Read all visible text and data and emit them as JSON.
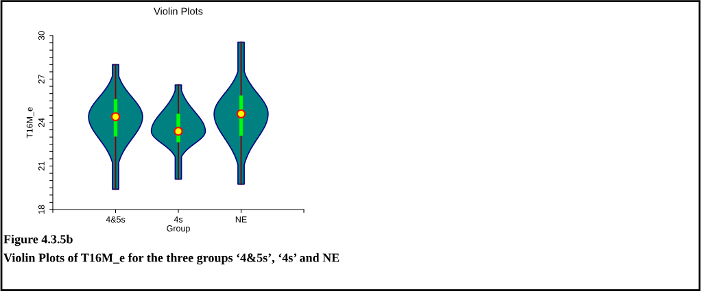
{
  "chart_data": {
    "type": "box",
    "title": "Violin Plots",
    "xlabel": "Group",
    "ylabel": "T16M_e",
    "categories": [
      "4&5s",
      "4s",
      "NE"
    ],
    "series": [
      {
        "color": "#00ff00",
        "boxes": [
          {
            "low": 19.4,
            "q1": 23.05,
            "median": 24.4,
            "q3": 25.6,
            "high": 28.0
          },
          {
            "low": 20.1,
            "q1": 22.65,
            "median": 23.4,
            "q3": 24.6,
            "high": 26.6
          },
          {
            "low": 19.75,
            "q1": 23.1,
            "median": 24.6,
            "q3": 25.85,
            "high": 29.55
          }
        ]
      }
    ],
    "ylim": [
      18,
      30
    ],
    "yticks": [
      18,
      {
        "value": 18.5,
        "label": null
      },
      {
        "value": 19,
        "label": null
      },
      {
        "value": 19.5,
        "label": null
      },
      {
        "value": 20,
        "label": null
      },
      {
        "value": 20.5,
        "label": null
      },
      21,
      {
        "value": 21.5,
        "label": null
      },
      {
        "value": 22,
        "label": null
      },
      {
        "value": 22.5,
        "label": null
      },
      {
        "value": 23,
        "label": null
      },
      {
        "value": 23.5,
        "label": null
      },
      24,
      {
        "value": 24.5,
        "label": null
      },
      {
        "value": 25,
        "label": null
      },
      {
        "value": 25.5,
        "label": null
      },
      {
        "value": 26,
        "label": null
      },
      {
        "value": 26.5,
        "label": null
      },
      27,
      {
        "value": 27.5,
        "label": null
      },
      {
        "value": 28,
        "label": null
      },
      {
        "value": 28.5,
        "label": null
      },
      {
        "value": 29,
        "label": null
      },
      {
        "value": 29.5,
        "label": null
      },
      30
    ],
    "grid": false,
    "legend": false,
    "annotations": [
      "Figure 4.3.5b",
      "Violin Plots of T16M_e for the three groups ‘4&5s’, ‘4s’ and NE"
    ]
  }
}
